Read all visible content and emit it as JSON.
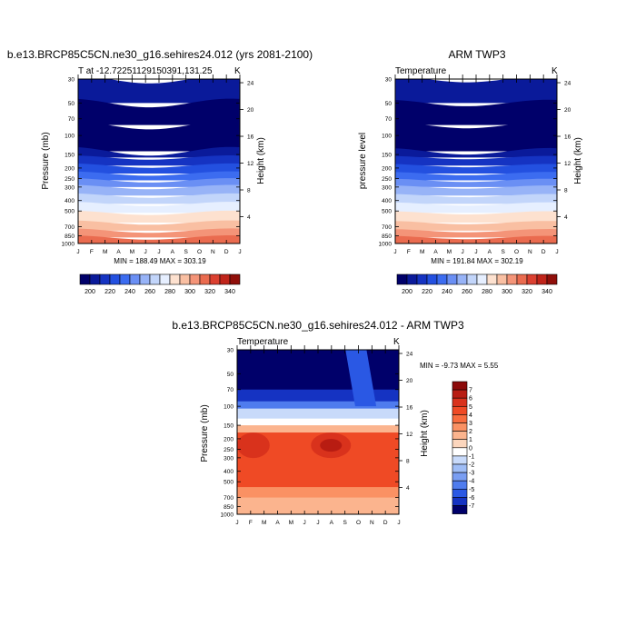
{
  "panels": {
    "model": {
      "title": "b.e13.BRCP85C5CN.ne30_g16.sehires24.012 (yrs 2081-2100)",
      "left_label": "T at -12.72251129150391,131.25",
      "right_label": "K",
      "ylabel": "Pressure (mb)",
      "ylabel_right": "Height (km)",
      "minmax": "MIN = 188.49 MAX = 303.19"
    },
    "obs": {
      "title": "ARM TWP3",
      "left_label": "Temperature",
      "right_label": "K",
      "ylabel": "pressure level",
      "ylabel_right": "Height (km)",
      "minmax": "MIN = 191.84 MAX = 302.19"
    },
    "diff": {
      "title": "b.e13.BRCP85C5CN.ne30_g16.sehires24.012 - ARM TWP3",
      "left_label": "Temperature",
      "right_label": "K",
      "ylabel": "Pressure (mb)",
      "ylabel_right": "Height (km)",
      "minmax": "MIN =  -9.73 MAX =   5.55"
    }
  },
  "chart_data": [
    {
      "type": "heatmap",
      "title": "b.e13.BRCP85C5CN.ne30_g16.sehires24.012 (yrs 2081-2100)",
      "variable": "T at -12.72251129150391,131.25",
      "units": "K",
      "x": [
        "J",
        "F",
        "M",
        "A",
        "M",
        "J",
        "J",
        "A",
        "S",
        "O",
        "N",
        "D",
        "J"
      ],
      "y_pressure_ticks": [
        30,
        50,
        70,
        100,
        150,
        200,
        250,
        300,
        400,
        500,
        700,
        850,
        1000
      ],
      "y_height_ticks": [
        24,
        20,
        16,
        12,
        8,
        4
      ],
      "min": 188.49,
      "max": 303.19,
      "colorbar_levels": [
        190,
        200,
        210,
        220,
        230,
        240,
        250,
        260,
        270,
        280,
        290,
        300,
        310,
        320,
        330,
        340
      ],
      "colorbar_labels": [
        200,
        220,
        240,
        260,
        280,
        300,
        320,
        340
      ],
      "colorbar_colors": [
        "#00006a",
        "#0a1a9a",
        "#1533c2",
        "#2350e0",
        "#3c6cf0",
        "#6a8ff4",
        "#97b3f7",
        "#c2d5fa",
        "#e6efff",
        "#fde1cf",
        "#f9bfa2",
        "#f49478",
        "#ea6b4f",
        "#db4030",
        "#c0241a",
        "#900f0a"
      ]
    },
    {
      "type": "heatmap",
      "title": "ARM TWP3",
      "variable": "Temperature",
      "units": "K",
      "x": [
        "J",
        "F",
        "M",
        "A",
        "M",
        "J",
        "J",
        "A",
        "S",
        "O",
        "N",
        "D",
        "J"
      ],
      "y_pressure_ticks": [
        30,
        50,
        70,
        100,
        150,
        200,
        250,
        300,
        400,
        500,
        700,
        850,
        1000
      ],
      "y_height_ticks": [
        24,
        20,
        16,
        12,
        8,
        4
      ],
      "min": 191.84,
      "max": 302.19,
      "colorbar_levels": [
        190,
        200,
        210,
        220,
        230,
        240,
        250,
        260,
        270,
        280,
        290,
        300,
        310,
        320,
        330,
        340
      ],
      "colorbar_labels": [
        200,
        220,
        240,
        260,
        280,
        300,
        320,
        340
      ],
      "colorbar_colors": [
        "#00006a",
        "#0a1a9a",
        "#1533c2",
        "#2350e0",
        "#3c6cf0",
        "#6a8ff4",
        "#97b3f7",
        "#c2d5fa",
        "#e6efff",
        "#fde1cf",
        "#f9bfa2",
        "#f49478",
        "#ea6b4f",
        "#db4030",
        "#c0241a",
        "#900f0a"
      ]
    },
    {
      "type": "heatmap",
      "title": "b.e13.BRCP85C5CN.ne30_g16.sehires24.012 - ARM TWP3",
      "variable": "Temperature",
      "units": "K",
      "x": [
        "J",
        "F",
        "M",
        "A",
        "M",
        "J",
        "J",
        "A",
        "S",
        "O",
        "N",
        "D",
        "J"
      ],
      "y_pressure_ticks": [
        30,
        50,
        70,
        100,
        150,
        200,
        250,
        300,
        400,
        500,
        700,
        850,
        1000
      ],
      "y_height_ticks": [
        24,
        20,
        16,
        12,
        8,
        4
      ],
      "min": -9.73,
      "max": 5.55,
      "colorbar_labels": [
        7,
        6,
        5,
        4,
        3,
        2,
        1,
        0,
        -1,
        -2,
        -3,
        -4,
        -5,
        -6,
        -7
      ],
      "colorbar_colors": [
        "#8c0a0a",
        "#b81c12",
        "#d9321c",
        "#ef4a25",
        "#f86c3e",
        "#fa9163",
        "#fbb48e",
        "#fcd6bd",
        "#ffffff",
        "#c8dafa",
        "#9fbdf6",
        "#7a9ef2",
        "#4f7cee",
        "#2a58e4",
        "#1533c2",
        "#00006a"
      ]
    }
  ]
}
